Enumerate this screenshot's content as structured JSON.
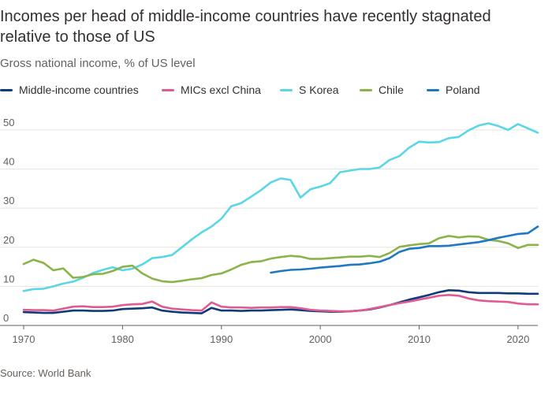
{
  "chart_data": {
    "type": "line",
    "title": "Incomes per head of middle-income countries have recently stagnated relative to those of US",
    "subtitle": "Gross national income, % of US level",
    "source": "Source: World Bank",
    "xlabel": "",
    "ylabel": "",
    "xlim": [
      1970,
      2022
    ],
    "ylim": [
      0,
      53
    ],
    "xticks": [
      1970,
      1980,
      1990,
      2000,
      2010,
      2020
    ],
    "yticks": [
      0,
      10,
      20,
      30,
      40,
      50
    ],
    "legend_position": "top",
    "series": [
      {
        "name": "Middle-income countries",
        "color": "#0f3c78",
        "x": [
          1970,
          1971,
          1972,
          1973,
          1974,
          1975,
          1976,
          1977,
          1978,
          1979,
          1980,
          1981,
          1982,
          1983,
          1984,
          1985,
          1986,
          1987,
          1988,
          1989,
          1990,
          1991,
          1992,
          1993,
          1994,
          1995,
          1996,
          1997,
          1998,
          1999,
          2000,
          2001,
          2002,
          2003,
          2004,
          2005,
          2006,
          2007,
          2008,
          2009,
          2010,
          2011,
          2012,
          2013,
          2014,
          2015,
          2016,
          2017,
          2018,
          2019,
          2020,
          2021,
          2022
        ],
        "values": [
          3.4,
          3.3,
          3.2,
          3.2,
          3.5,
          3.8,
          3.8,
          3.7,
          3.7,
          3.8,
          4.2,
          4.3,
          4.4,
          4.6,
          3.8,
          3.5,
          3.3,
          3.2,
          3.1,
          4.5,
          3.8,
          3.8,
          3.7,
          3.8,
          3.8,
          3.9,
          4.0,
          4.1,
          3.9,
          3.7,
          3.6,
          3.5,
          3.5,
          3.6,
          3.8,
          4.1,
          4.6,
          5.2,
          5.9,
          6.6,
          7.2,
          7.8,
          8.5,
          9.0,
          8.9,
          8.5,
          8.3,
          8.3,
          8.3,
          8.2,
          8.2,
          8.1,
          8.1
        ]
      },
      {
        "name": "MICs excl China",
        "color": "#e15b93",
        "x": [
          1970,
          1971,
          1972,
          1973,
          1974,
          1975,
          1976,
          1977,
          1978,
          1979,
          1980,
          1981,
          1982,
          1983,
          1984,
          1985,
          1986,
          1987,
          1988,
          1989,
          1990,
          1991,
          1992,
          1993,
          1994,
          1995,
          1996,
          1997,
          1998,
          1999,
          2000,
          2001,
          2002,
          2003,
          2004,
          2005,
          2006,
          2007,
          2008,
          2009,
          2010,
          2011,
          2012,
          2013,
          2014,
          2015,
          2016,
          2017,
          2018,
          2019,
          2020,
          2021,
          2022
        ],
        "values": [
          4.0,
          3.9,
          3.9,
          3.8,
          4.3,
          4.8,
          4.9,
          4.7,
          4.7,
          4.8,
          5.2,
          5.4,
          5.5,
          6.1,
          4.8,
          4.3,
          4.1,
          3.9,
          3.8,
          5.9,
          4.8,
          4.6,
          4.6,
          4.5,
          4.6,
          4.6,
          4.7,
          4.7,
          4.4,
          4.0,
          3.8,
          3.7,
          3.6,
          3.6,
          3.8,
          4.2,
          4.7,
          5.2,
          5.7,
          6.1,
          6.6,
          7.1,
          7.6,
          7.8,
          7.6,
          6.9,
          6.4,
          6.2,
          6.1,
          6.0,
          5.6,
          5.4,
          5.4
        ]
      },
      {
        "name": "S Korea",
        "color": "#5ad6e6",
        "x": [
          1970,
          1971,
          1972,
          1973,
          1974,
          1975,
          1976,
          1977,
          1978,
          1979,
          1980,
          1981,
          1982,
          1983,
          1984,
          1985,
          1986,
          1987,
          1988,
          1989,
          1990,
          1991,
          1992,
          1993,
          1994,
          1995,
          1996,
          1997,
          1998,
          1999,
          2000,
          2001,
          2002,
          2003,
          2004,
          2005,
          2006,
          2007,
          2008,
          2009,
          2010,
          2011,
          2012,
          2013,
          2014,
          2015,
          2016,
          2017,
          2018,
          2019,
          2020,
          2021,
          2022
        ],
        "values": [
          8.8,
          9.3,
          9.4,
          10.0,
          10.7,
          11.2,
          12.2,
          13.4,
          14.2,
          14.9,
          14.1,
          14.5,
          15.6,
          17.2,
          17.5,
          18.0,
          20.0,
          22.0,
          23.8,
          25.3,
          27.3,
          30.5,
          31.3,
          32.9,
          34.6,
          36.6,
          37.6,
          37.2,
          32.7,
          34.8,
          35.5,
          36.4,
          39.2,
          39.6,
          40.0,
          40.0,
          40.4,
          42.3,
          43.3,
          45.5,
          47.0,
          46.8,
          46.9,
          47.9,
          48.2,
          49.9,
          51.1,
          51.7,
          51.0,
          50.0,
          51.5,
          50.4,
          49.3
        ]
      },
      {
        "name": "Chile",
        "color": "#8ab44a",
        "x": [
          1970,
          1971,
          1972,
          1973,
          1974,
          1975,
          1976,
          1977,
          1978,
          1979,
          1980,
          1981,
          1982,
          1983,
          1984,
          1985,
          1986,
          1987,
          1988,
          1989,
          1990,
          1991,
          1992,
          1993,
          1994,
          1995,
          1996,
          1997,
          1998,
          1999,
          2000,
          2001,
          2002,
          2003,
          2004,
          2005,
          2006,
          2007,
          2008,
          2009,
          2010,
          2011,
          2012,
          2013,
          2014,
          2015,
          2016,
          2017,
          2018,
          2019,
          2020,
          2021,
          2022
        ],
        "values": [
          15.7,
          16.8,
          16.0,
          14.1,
          14.6,
          12.2,
          12.4,
          13.1,
          13.2,
          13.9,
          15.0,
          15.3,
          13.3,
          12.0,
          11.3,
          11.1,
          11.4,
          11.8,
          12.1,
          12.9,
          13.3,
          14.3,
          15.5,
          16.2,
          16.4,
          17.1,
          17.5,
          17.8,
          17.6,
          17.0,
          17.0,
          17.2,
          17.4,
          17.6,
          17.6,
          17.8,
          17.5,
          18.5,
          20.1,
          20.5,
          20.8,
          21.0,
          22.3,
          22.9,
          22.5,
          22.8,
          22.7,
          21.9,
          21.6,
          21.0,
          19.8,
          20.6,
          20.6
        ]
      },
      {
        "name": "Poland",
        "color": "#1f78c4",
        "x": [
          1995,
          1996,
          1997,
          1998,
          1999,
          2000,
          2001,
          2002,
          2003,
          2004,
          2005,
          2006,
          2007,
          2008,
          2009,
          2010,
          2011,
          2012,
          2013,
          2014,
          2015,
          2016,
          2017,
          2018,
          2019,
          2020,
          2021,
          2022
        ],
        "values": [
          13.5,
          13.9,
          14.2,
          14.3,
          14.5,
          14.8,
          15.0,
          15.2,
          15.5,
          15.6,
          15.9,
          16.3,
          17.2,
          18.8,
          19.6,
          19.8,
          20.3,
          20.3,
          20.4,
          20.7,
          21.0,
          21.3,
          21.8,
          22.4,
          22.9,
          23.4,
          23.6,
          25.3
        ]
      }
    ]
  }
}
